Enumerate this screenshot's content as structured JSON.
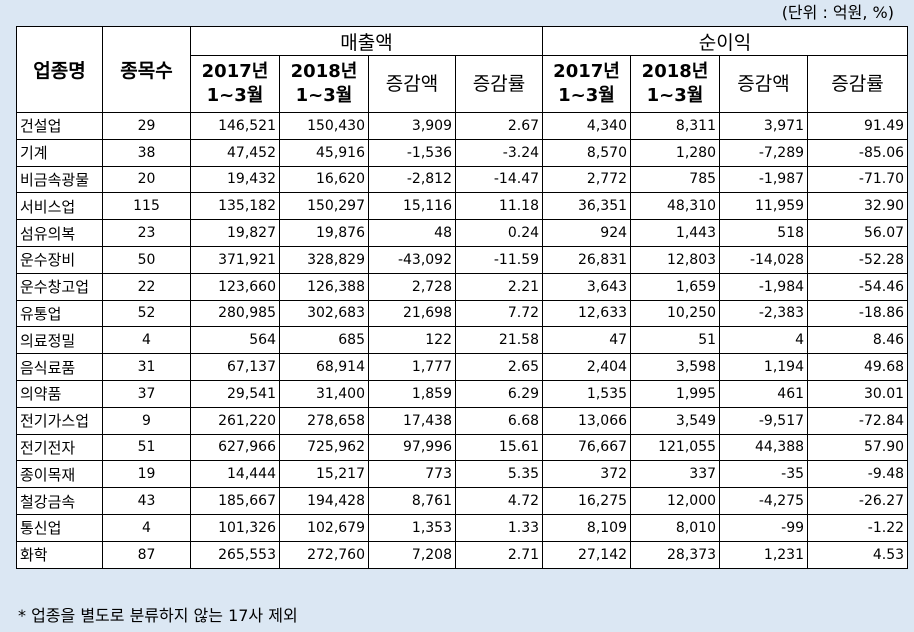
{
  "unit_note": "(단위 : 억원, %)",
  "header": {
    "industry": "업종명",
    "count": "종목수",
    "sales_group": "매출액",
    "profit_group": "순이익",
    "y2017": "2017년",
    "y2018": "2018년",
    "period": "1~3월",
    "change_amount": "증감액",
    "change_rate": "증감률"
  },
  "rows": [
    {
      "name": "건설업",
      "count": "29",
      "s17": "146,521",
      "s18": "150,430",
      "sd": "3,909",
      "sr": "2.67",
      "p17": "4,340",
      "p18": "8,311",
      "pd": "3,971",
      "pr": "91.49"
    },
    {
      "name": "기계",
      "count": "38",
      "s17": "47,452",
      "s18": "45,916",
      "sd": "-1,536",
      "sr": "-3.24",
      "p17": "8,570",
      "p18": "1,280",
      "pd": "-7,289",
      "pr": "-85.06"
    },
    {
      "name": "비금속광물",
      "count": "20",
      "s17": "19,432",
      "s18": "16,620",
      "sd": "-2,812",
      "sr": "-14.47",
      "p17": "2,772",
      "p18": "785",
      "pd": "-1,987",
      "pr": "-71.70"
    },
    {
      "name": "서비스업",
      "count": "115",
      "s17": "135,182",
      "s18": "150,297",
      "sd": "15,116",
      "sr": "11.18",
      "p17": "36,351",
      "p18": "48,310",
      "pd": "11,959",
      "pr": "32.90"
    },
    {
      "name": "섬유의복",
      "count": "23",
      "s17": "19,827",
      "s18": "19,876",
      "sd": "48",
      "sr": "0.24",
      "p17": "924",
      "p18": "1,443",
      "pd": "518",
      "pr": "56.07"
    },
    {
      "name": "운수장비",
      "count": "50",
      "s17": "371,921",
      "s18": "328,829",
      "sd": "-43,092",
      "sr": "-11.59",
      "p17": "26,831",
      "p18": "12,803",
      "pd": "-14,028",
      "pr": "-52.28"
    },
    {
      "name": "운수창고업",
      "count": "22",
      "s17": "123,660",
      "s18": "126,388",
      "sd": "2,728",
      "sr": "2.21",
      "p17": "3,643",
      "p18": "1,659",
      "pd": "-1,984",
      "pr": "-54.46"
    },
    {
      "name": "유통업",
      "count": "52",
      "s17": "280,985",
      "s18": "302,683",
      "sd": "21,698",
      "sr": "7.72",
      "p17": "12,633",
      "p18": "10,250",
      "pd": "-2,383",
      "pr": "-18.86"
    },
    {
      "name": "의료정밀",
      "count": "4",
      "s17": "564",
      "s18": "685",
      "sd": "122",
      "sr": "21.58",
      "p17": "47",
      "p18": "51",
      "pd": "4",
      "pr": "8.46"
    },
    {
      "name": "음식료품",
      "count": "31",
      "s17": "67,137",
      "s18": "68,914",
      "sd": "1,777",
      "sr": "2.65",
      "p17": "2,404",
      "p18": "3,598",
      "pd": "1,194",
      "pr": "49.68"
    },
    {
      "name": "의약품",
      "count": "37",
      "s17": "29,541",
      "s18": "31,400",
      "sd": "1,859",
      "sr": "6.29",
      "p17": "1,535",
      "p18": "1,995",
      "pd": "461",
      "pr": "30.01"
    },
    {
      "name": "전기가스업",
      "count": "9",
      "s17": "261,220",
      "s18": "278,658",
      "sd": "17,438",
      "sr": "6.68",
      "p17": "13,066",
      "p18": "3,549",
      "pd": "-9,517",
      "pr": "-72.84"
    },
    {
      "name": "전기전자",
      "count": "51",
      "s17": "627,966",
      "s18": "725,962",
      "sd": "97,996",
      "sr": "15.61",
      "p17": "76,667",
      "p18": "121,055",
      "pd": "44,388",
      "pr": "57.90"
    },
    {
      "name": "종이목재",
      "count": "19",
      "s17": "14,444",
      "s18": "15,217",
      "sd": "773",
      "sr": "5.35",
      "p17": "372",
      "p18": "337",
      "pd": "-35",
      "pr": "-9.48"
    },
    {
      "name": "철강금속",
      "count": "43",
      "s17": "185,667",
      "s18": "194,428",
      "sd": "8,761",
      "sr": "4.72",
      "p17": "16,275",
      "p18": "12,000",
      "pd": "-4,275",
      "pr": "-26.27"
    },
    {
      "name": "통신업",
      "count": "4",
      "s17": "101,326",
      "s18": "102,679",
      "sd": "1,353",
      "sr": "1.33",
      "p17": "8,109",
      "p18": "8,010",
      "pd": "-99",
      "pr": "-1.22"
    },
    {
      "name": "화학",
      "count": "87",
      "s17": "265,553",
      "s18": "272,760",
      "sd": "7,208",
      "sr": "2.71",
      "p17": "27,142",
      "p18": "28,373",
      "pd": "1,231",
      "pr": "4.53"
    }
  ],
  "footnote": "* 업종을 별도로 분류하지 않는 17사 제외"
}
